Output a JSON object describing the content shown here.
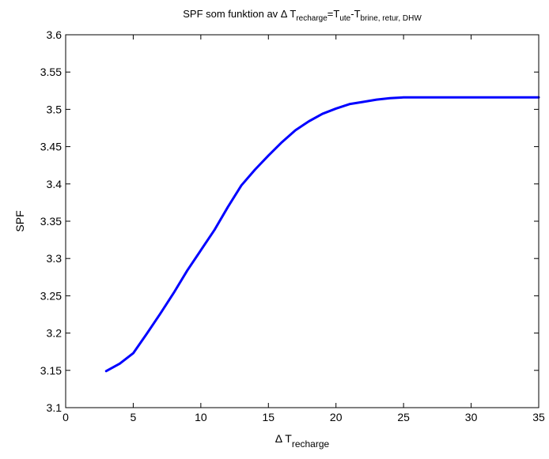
{
  "chart_data": {
    "type": "line",
    "title": {
      "parts": [
        {
          "text": "SPF som funktion av Δ T",
          "sub": false
        },
        {
          "text": "recharge",
          "sub": true
        },
        {
          "text": "=T",
          "sub": false
        },
        {
          "text": "ute",
          "sub": true
        },
        {
          "text": "-T",
          "sub": false
        },
        {
          "text": "brine, retur, DHW",
          "sub": true
        }
      ]
    },
    "xlabel": {
      "main": "Δ T",
      "sub": "recharge"
    },
    "ylabel": "SPF",
    "xlim": [
      0,
      35
    ],
    "ylim": [
      3.1,
      3.6
    ],
    "xticks": [
      0,
      5,
      10,
      15,
      20,
      25,
      30,
      35
    ],
    "yticks": [
      3.1,
      3.15,
      3.2,
      3.25,
      3.3,
      3.35,
      3.4,
      3.45,
      3.5,
      3.55,
      3.6
    ],
    "xtick_labels": [
      "0",
      "5",
      "10",
      "15",
      "20",
      "25",
      "30",
      "35"
    ],
    "ytick_labels": [
      "3.1",
      "3.15",
      "3.2",
      "3.25",
      "3.3",
      "3.35",
      "3.4",
      "3.45",
      "3.5",
      "3.55",
      "3.6"
    ],
    "grid": false,
    "series": [
      {
        "color": "#0000ff",
        "x": [
          3,
          4,
          5,
          6,
          7,
          8,
          9,
          10,
          11,
          12,
          13,
          14,
          15,
          16,
          17,
          18,
          19,
          20,
          21,
          22,
          23,
          24,
          25,
          26,
          27,
          28,
          30,
          35
        ],
        "y": [
          3.149,
          3.159,
          3.173,
          3.199,
          3.226,
          3.254,
          3.284,
          3.311,
          3.338,
          3.369,
          3.398,
          3.419,
          3.438,
          3.456,
          3.472,
          3.484,
          3.494,
          3.501,
          3.507,
          3.51,
          3.513,
          3.515,
          3.516,
          3.516,
          3.516,
          3.516,
          3.516,
          3.516
        ]
      }
    ]
  }
}
